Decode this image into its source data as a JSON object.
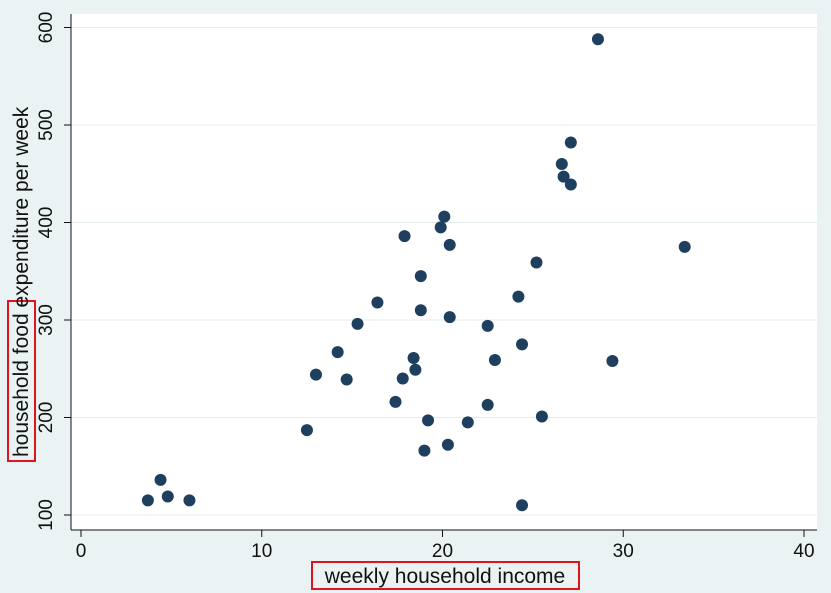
{
  "chart_data": {
    "type": "scatter",
    "title": "",
    "xlabel": "weekly household income",
    "ylabel": "household food expenditure per week",
    "ylabel_highlight": "household food",
    "ylabel_rest": " expenditure per week",
    "xlim": [
      0,
      40
    ],
    "ylim": [
      100,
      600
    ],
    "xticks": [
      0,
      10,
      20,
      30,
      40
    ],
    "yticks": [
      100,
      200,
      300,
      400,
      500,
      600
    ],
    "grid": true,
    "marker_color": "#1f3f5f",
    "highlight_color": "#e0141e",
    "points": [
      {
        "x": 3.7,
        "y": 115
      },
      {
        "x": 4.4,
        "y": 136
      },
      {
        "x": 4.8,
        "y": 119
      },
      {
        "x": 6.0,
        "y": 115
      },
      {
        "x": 12.5,
        "y": 187
      },
      {
        "x": 13.0,
        "y": 244
      },
      {
        "x": 14.2,
        "y": 267
      },
      {
        "x": 14.7,
        "y": 239
      },
      {
        "x": 15.3,
        "y": 296
      },
      {
        "x": 16.4,
        "y": 318
      },
      {
        "x": 17.4,
        "y": 216
      },
      {
        "x": 17.8,
        "y": 240
      },
      {
        "x": 17.9,
        "y": 386
      },
      {
        "x": 18.4,
        "y": 261
      },
      {
        "x": 18.5,
        "y": 249
      },
      {
        "x": 18.8,
        "y": 345
      },
      {
        "x": 18.8,
        "y": 310
      },
      {
        "x": 19.0,
        "y": 166
      },
      {
        "x": 19.2,
        "y": 197
      },
      {
        "x": 19.9,
        "y": 395
      },
      {
        "x": 20.1,
        "y": 406
      },
      {
        "x": 20.3,
        "y": 172
      },
      {
        "x": 20.4,
        "y": 303
      },
      {
        "x": 20.4,
        "y": 377
      },
      {
        "x": 21.4,
        "y": 195
      },
      {
        "x": 22.5,
        "y": 294
      },
      {
        "x": 22.5,
        "y": 213
      },
      {
        "x": 22.9,
        "y": 259
      },
      {
        "x": 24.2,
        "y": 324
      },
      {
        "x": 24.4,
        "y": 275
      },
      {
        "x": 24.4,
        "y": 110
      },
      {
        "x": 25.2,
        "y": 359
      },
      {
        "x": 25.5,
        "y": 201
      },
      {
        "x": 26.6,
        "y": 460
      },
      {
        "x": 26.7,
        "y": 447
      },
      {
        "x": 27.1,
        "y": 482
      },
      {
        "x": 27.1,
        "y": 439
      },
      {
        "x": 28.6,
        "y": 588
      },
      {
        "x": 29.4,
        "y": 258
      },
      {
        "x": 33.4,
        "y": 375
      }
    ]
  }
}
